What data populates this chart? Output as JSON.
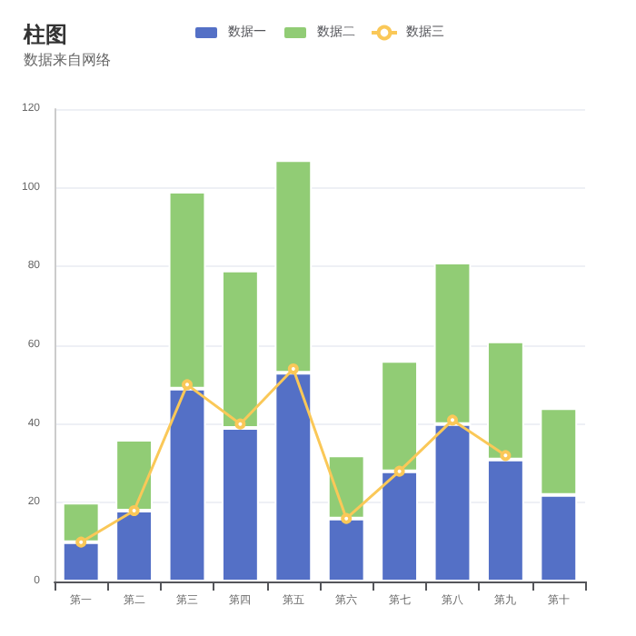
{
  "chart_data": {
    "type": "bar",
    "title": "柱图",
    "subtitle": "数据来自网络",
    "categories": [
      "第一",
      "第二",
      "第三",
      "第四",
      "第五",
      "第六",
      "第七",
      "第八",
      "第九",
      "第十"
    ],
    "stacked": true,
    "series": [
      {
        "name": "数据一",
        "color": "#5470c6",
        "values": [
          10,
          18,
          49,
          39,
          53,
          16,
          28,
          40,
          31,
          22
        ]
      },
      {
        "name": "数据二",
        "color": "#91cc75",
        "values": [
          10,
          18,
          50,
          40,
          54,
          16,
          28,
          41,
          30,
          22
        ]
      },
      {
        "name": "数据三",
        "type": "line",
        "color": "#fac858",
        "values": [
          10,
          18,
          50,
          40,
          54,
          16,
          28,
          41,
          32,
          null
        ]
      }
    ],
    "ylim": [
      0,
      120
    ],
    "yticks": [
      0,
      20,
      40,
      60,
      80,
      100,
      120
    ],
    "grid": "y",
    "legend": "top",
    "marker": "circle"
  }
}
